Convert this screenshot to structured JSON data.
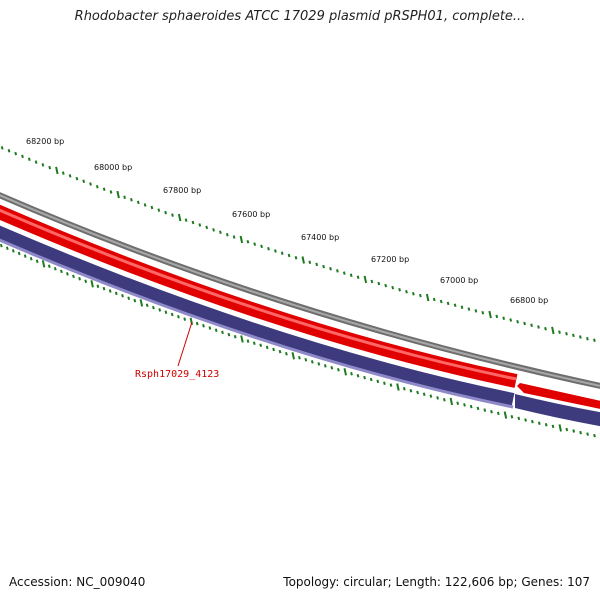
{
  "title": "Rhodobacter sphaeroides ATCC 17029 plasmid pRSPH01, complete...",
  "footer": {
    "accession": "Accession: NC_009040",
    "summary": "Topology: circular; Length: 122,606 bp; Genes: 107"
  },
  "ruler": {
    "labels": [
      "68200 bp",
      "68000 bp",
      "67800 bp",
      "67600 bp",
      "67400 bp",
      "67200 bp",
      "67000 bp",
      "66800 bp"
    ]
  },
  "genes": [
    {
      "name": "Rsph17029_4123",
      "strand": "reverse"
    }
  ],
  "colors": {
    "backbone": "#808080",
    "forward_gene": "#ff0000",
    "reverse_gene": "#3c3a7c",
    "ticks": "#1e7a1e",
    "label": "#cc0000"
  }
}
